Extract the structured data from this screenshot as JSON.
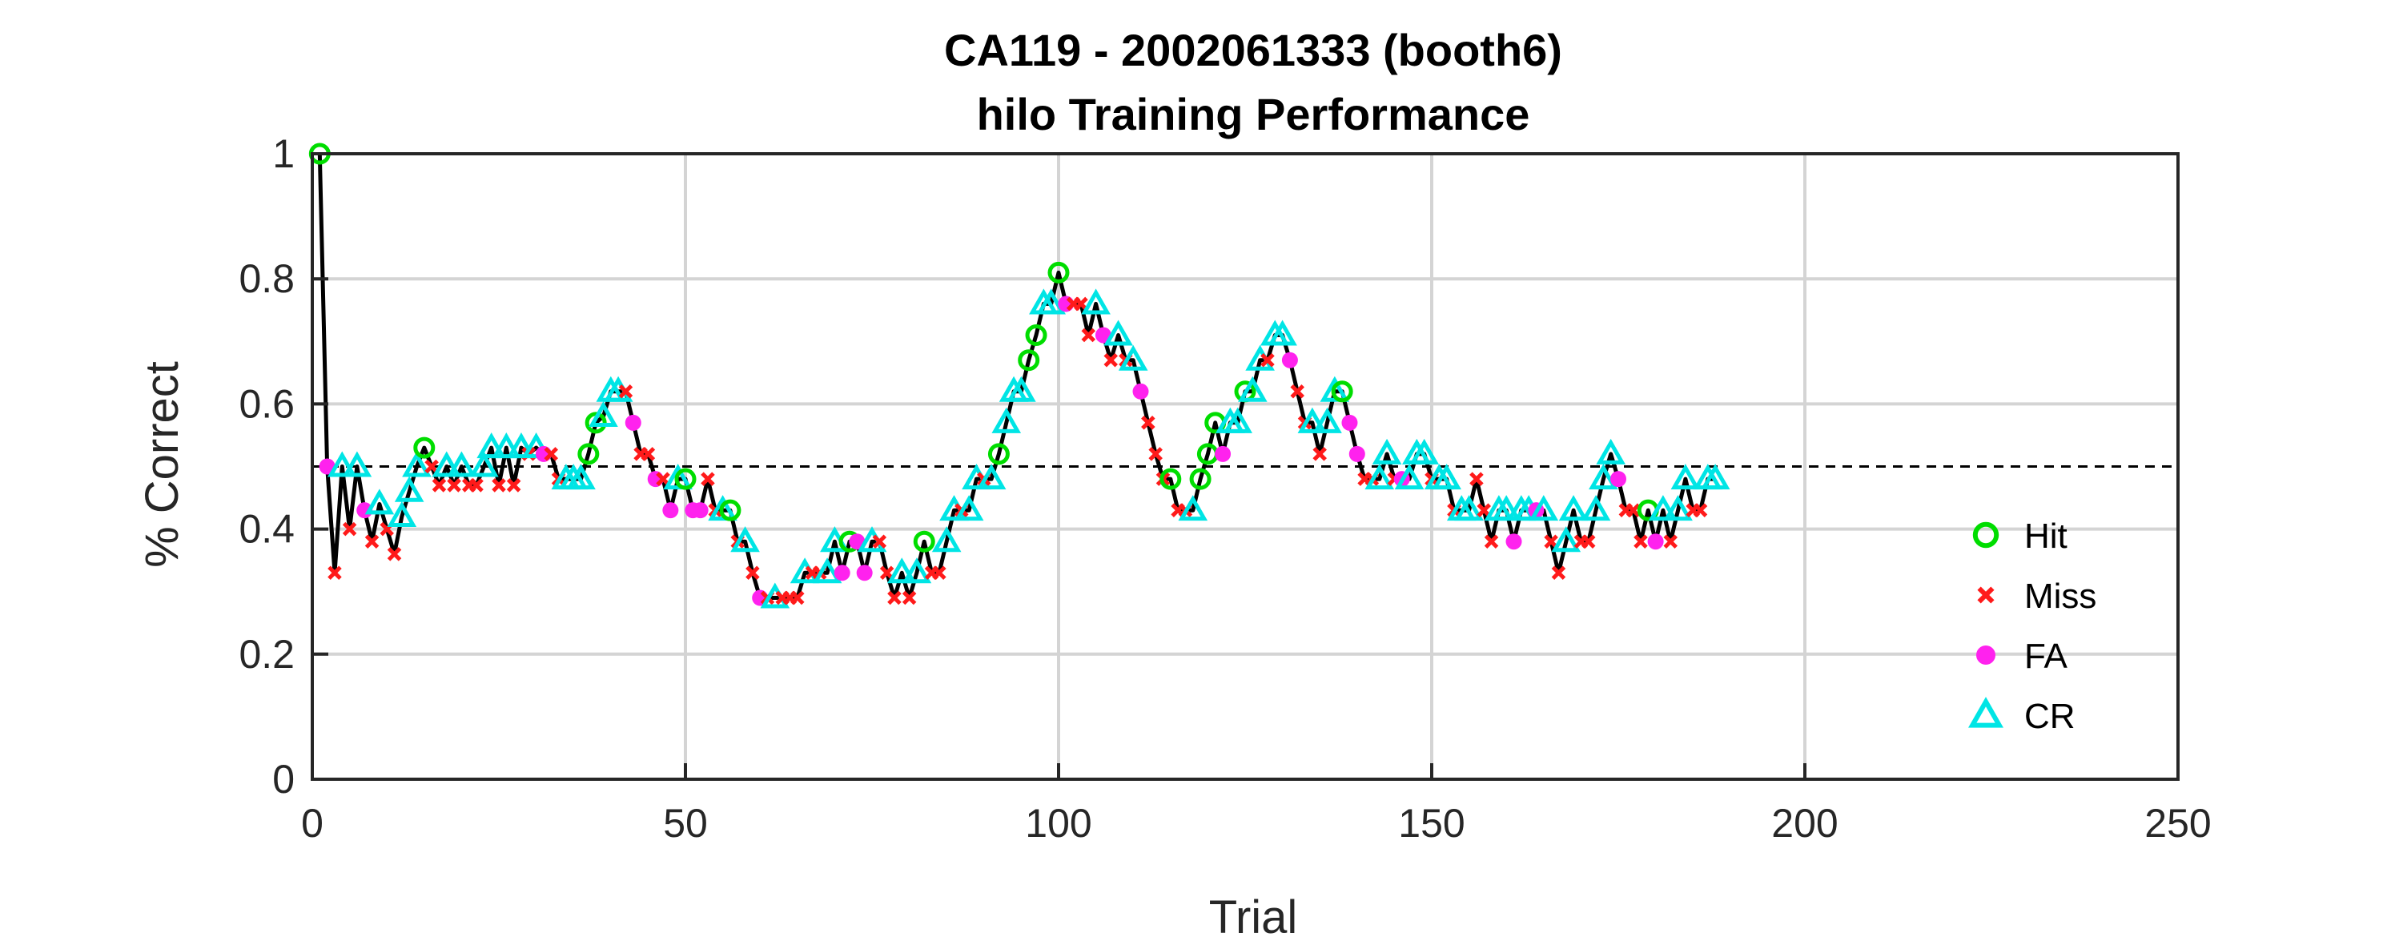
{
  "chart_data": {
    "type": "line",
    "title": "CA119 - 2002061333 (booth6)",
    "subtitle": "hilo Training Performance",
    "xlabel": "Trial",
    "ylabel": "% Correct",
    "xlim": [
      0,
      250
    ],
    "ylim": [
      0,
      1
    ],
    "xticks": [
      "0",
      "50",
      "100",
      "150",
      "200",
      "250"
    ],
    "yticks": [
      "0",
      "0.2",
      "0.4",
      "0.6",
      "0.8",
      "1"
    ],
    "grid": true,
    "chance_line": 0.5,
    "legend_position": "right",
    "legend": [
      {
        "name": "Hit",
        "marker": "circle",
        "color": "#00dd00"
      },
      {
        "name": "Miss",
        "marker": "x",
        "color": "#ff1a1a"
      },
      {
        "name": "FA",
        "marker": "dot",
        "color": "#ff22ee"
      },
      {
        "name": "CR",
        "marker": "triangle",
        "color": "#00e5e5"
      }
    ],
    "outcome_key": {
      "H": "Hit",
      "M": "Miss",
      "F": "FA",
      "C": "CR"
    },
    "trials": [
      {
        "x": 1,
        "y": 1.0,
        "o": "H"
      },
      {
        "x": 2,
        "y": 0.5,
        "o": "F"
      },
      {
        "x": 3,
        "y": 0.33,
        "o": "M"
      },
      {
        "x": 4,
        "y": 0.5,
        "o": "C"
      },
      {
        "x": 5,
        "y": 0.4,
        "o": "M"
      },
      {
        "x": 6,
        "y": 0.5,
        "o": "C"
      },
      {
        "x": 7,
        "y": 0.43,
        "o": "F"
      },
      {
        "x": 8,
        "y": 0.38,
        "o": "M"
      },
      {
        "x": 9,
        "y": 0.44,
        "o": "C"
      },
      {
        "x": 10,
        "y": 0.4,
        "o": "M"
      },
      {
        "x": 11,
        "y": 0.36,
        "o": "M"
      },
      {
        "x": 12,
        "y": 0.42,
        "o": "C"
      },
      {
        "x": 13,
        "y": 0.46,
        "o": "C"
      },
      {
        "x": 14,
        "y": 0.5,
        "o": "C"
      },
      {
        "x": 15,
        "y": 0.53,
        "o": "H"
      },
      {
        "x": 16,
        "y": 0.5,
        "o": "M"
      },
      {
        "x": 17,
        "y": 0.47,
        "o": "M"
      },
      {
        "x": 18,
        "y": 0.5,
        "o": "C"
      },
      {
        "x": 19,
        "y": 0.47,
        "o": "M"
      },
      {
        "x": 20,
        "y": 0.5,
        "o": "C"
      },
      {
        "x": 21,
        "y": 0.47,
        "o": "M"
      },
      {
        "x": 22,
        "y": 0.47,
        "o": "M"
      },
      {
        "x": 23,
        "y": 0.5,
        "o": "C"
      },
      {
        "x": 24,
        "y": 0.53,
        "o": "C"
      },
      {
        "x": 25,
        "y": 0.47,
        "o": "M"
      },
      {
        "x": 26,
        "y": 0.53,
        "o": "C"
      },
      {
        "x": 27,
        "y": 0.47,
        "o": "M"
      },
      {
        "x": 28,
        "y": 0.53,
        "o": "C"
      },
      {
        "x": 29,
        "y": 0.52,
        "o": "M"
      },
      {
        "x": 30,
        "y": 0.53,
        "o": "C"
      },
      {
        "x": 31,
        "y": 0.52,
        "o": "F"
      },
      {
        "x": 32,
        "y": 0.52,
        "o": "M"
      },
      {
        "x": 33,
        "y": 0.48,
        "o": "M"
      },
      {
        "x": 34,
        "y": 0.48,
        "o": "C"
      },
      {
        "x": 35,
        "y": 0.48,
        "o": "C"
      },
      {
        "x": 36,
        "y": 0.48,
        "o": "C"
      },
      {
        "x": 37,
        "y": 0.52,
        "o": "H"
      },
      {
        "x": 38,
        "y": 0.57,
        "o": "H"
      },
      {
        "x": 39,
        "y": 0.58,
        "o": "C"
      },
      {
        "x": 40,
        "y": 0.62,
        "o": "C"
      },
      {
        "x": 41,
        "y": 0.62,
        "o": "C"
      },
      {
        "x": 42,
        "y": 0.62,
        "o": "M"
      },
      {
        "x": 43,
        "y": 0.57,
        "o": "F"
      },
      {
        "x": 44,
        "y": 0.52,
        "o": "M"
      },
      {
        "x": 45,
        "y": 0.52,
        "o": "M"
      },
      {
        "x": 46,
        "y": 0.48,
        "o": "F"
      },
      {
        "x": 47,
        "y": 0.48,
        "o": "M"
      },
      {
        "x": 48,
        "y": 0.43,
        "o": "F"
      },
      {
        "x": 49,
        "y": 0.48,
        "o": "C"
      },
      {
        "x": 50,
        "y": 0.48,
        "o": "H"
      },
      {
        "x": 51,
        "y": 0.43,
        "o": "F"
      },
      {
        "x": 52,
        "y": 0.43,
        "o": "F"
      },
      {
        "x": 53,
        "y": 0.48,
        "o": "M"
      },
      {
        "x": 54,
        "y": 0.43,
        "o": "M"
      },
      {
        "x": 55,
        "y": 0.43,
        "o": "C"
      },
      {
        "x": 56,
        "y": 0.43,
        "o": "H"
      },
      {
        "x": 57,
        "y": 0.38,
        "o": "M"
      },
      {
        "x": 58,
        "y": 0.38,
        "o": "C"
      },
      {
        "x": 59,
        "y": 0.33,
        "o": "M"
      },
      {
        "x": 60,
        "y": 0.29,
        "o": "F"
      },
      {
        "x": 61,
        "y": 0.29,
        "o": "M"
      },
      {
        "x": 62,
        "y": 0.29,
        "o": "C"
      },
      {
        "x": 63,
        "y": 0.29,
        "o": "M"
      },
      {
        "x": 64,
        "y": 0.29,
        "o": "M"
      },
      {
        "x": 65,
        "y": 0.29,
        "o": "M"
      },
      {
        "x": 66,
        "y": 0.33,
        "o": "C"
      },
      {
        "x": 67,
        "y": 0.33,
        "o": "M"
      },
      {
        "x": 68,
        "y": 0.33,
        "o": "M"
      },
      {
        "x": 69,
        "y": 0.33,
        "o": "C"
      },
      {
        "x": 70,
        "y": 0.38,
        "o": "C"
      },
      {
        "x": 71,
        "y": 0.33,
        "o": "F"
      },
      {
        "x": 72,
        "y": 0.38,
        "o": "H"
      },
      {
        "x": 73,
        "y": 0.38,
        "o": "F"
      },
      {
        "x": 74,
        "y": 0.33,
        "o": "F"
      },
      {
        "x": 75,
        "y": 0.38,
        "o": "C"
      },
      {
        "x": 76,
        "y": 0.38,
        "o": "M"
      },
      {
        "x": 77,
        "y": 0.33,
        "o": "M"
      },
      {
        "x": 78,
        "y": 0.29,
        "o": "M"
      },
      {
        "x": 79,
        "y": 0.33,
        "o": "C"
      },
      {
        "x": 80,
        "y": 0.29,
        "o": "M"
      },
      {
        "x": 81,
        "y": 0.33,
        "o": "C"
      },
      {
        "x": 82,
        "y": 0.38,
        "o": "H"
      },
      {
        "x": 83,
        "y": 0.33,
        "o": "M"
      },
      {
        "x": 84,
        "y": 0.33,
        "o": "M"
      },
      {
        "x": 85,
        "y": 0.38,
        "o": "C"
      },
      {
        "x": 86,
        "y": 0.43,
        "o": "C"
      },
      {
        "x": 87,
        "y": 0.43,
        "o": "M"
      },
      {
        "x": 88,
        "y": 0.43,
        "o": "C"
      },
      {
        "x": 89,
        "y": 0.48,
        "o": "C"
      },
      {
        "x": 90,
        "y": 0.48,
        "o": "M"
      },
      {
        "x": 91,
        "y": 0.48,
        "o": "C"
      },
      {
        "x": 92,
        "y": 0.52,
        "o": "H"
      },
      {
        "x": 93,
        "y": 0.57,
        "o": "C"
      },
      {
        "x": 94,
        "y": 0.62,
        "o": "C"
      },
      {
        "x": 95,
        "y": 0.62,
        "o": "C"
      },
      {
        "x": 96,
        "y": 0.67,
        "o": "H"
      },
      {
        "x": 97,
        "y": 0.71,
        "o": "H"
      },
      {
        "x": 98,
        "y": 0.76,
        "o": "C"
      },
      {
        "x": 99,
        "y": 0.76,
        "o": "C"
      },
      {
        "x": 100,
        "y": 0.81,
        "o": "H"
      },
      {
        "x": 101,
        "y": 0.76,
        "o": "F"
      },
      {
        "x": 102,
        "y": 0.76,
        "o": "M"
      },
      {
        "x": 103,
        "y": 0.76,
        "o": "M"
      },
      {
        "x": 104,
        "y": 0.71,
        "o": "M"
      },
      {
        "x": 105,
        "y": 0.76,
        "o": "C"
      },
      {
        "x": 106,
        "y": 0.71,
        "o": "F"
      },
      {
        "x": 107,
        "y": 0.67,
        "o": "M"
      },
      {
        "x": 108,
        "y": 0.71,
        "o": "C"
      },
      {
        "x": 109,
        "y": 0.67,
        "o": "M"
      },
      {
        "x": 110,
        "y": 0.67,
        "o": "C"
      },
      {
        "x": 111,
        "y": 0.62,
        "o": "F"
      },
      {
        "x": 112,
        "y": 0.57,
        "o": "M"
      },
      {
        "x": 113,
        "y": 0.52,
        "o": "M"
      },
      {
        "x": 114,
        "y": 0.48,
        "o": "M"
      },
      {
        "x": 115,
        "y": 0.48,
        "o": "H"
      },
      {
        "x": 116,
        "y": 0.43,
        "o": "M"
      },
      {
        "x": 117,
        "y": 0.43,
        "o": "M"
      },
      {
        "x": 118,
        "y": 0.43,
        "o": "C"
      },
      {
        "x": 119,
        "y": 0.48,
        "o": "H"
      },
      {
        "x": 120,
        "y": 0.52,
        "o": "H"
      },
      {
        "x": 121,
        "y": 0.57,
        "o": "H"
      },
      {
        "x": 122,
        "y": 0.52,
        "o": "F"
      },
      {
        "x": 123,
        "y": 0.57,
        "o": "C"
      },
      {
        "x": 124,
        "y": 0.57,
        "o": "C"
      },
      {
        "x": 125,
        "y": 0.62,
        "o": "H"
      },
      {
        "x": 126,
        "y": 0.62,
        "o": "C"
      },
      {
        "x": 127,
        "y": 0.67,
        "o": "C"
      },
      {
        "x": 128,
        "y": 0.67,
        "o": "M"
      },
      {
        "x": 129,
        "y": 0.71,
        "o": "C"
      },
      {
        "x": 130,
        "y": 0.71,
        "o": "C"
      },
      {
        "x": 131,
        "y": 0.67,
        "o": "F"
      },
      {
        "x": 132,
        "y": 0.62,
        "o": "M"
      },
      {
        "x": 133,
        "y": 0.57,
        "o": "M"
      },
      {
        "x": 134,
        "y": 0.57,
        "o": "C"
      },
      {
        "x": 135,
        "y": 0.52,
        "o": "M"
      },
      {
        "x": 136,
        "y": 0.57,
        "o": "C"
      },
      {
        "x": 137,
        "y": 0.62,
        "o": "C"
      },
      {
        "x": 138,
        "y": 0.62,
        "o": "H"
      },
      {
        "x": 139,
        "y": 0.57,
        "o": "F"
      },
      {
        "x": 140,
        "y": 0.52,
        "o": "F"
      },
      {
        "x": 141,
        "y": 0.48,
        "o": "M"
      },
      {
        "x": 142,
        "y": 0.48,
        "o": "M"
      },
      {
        "x": 143,
        "y": 0.48,
        "o": "C"
      },
      {
        "x": 144,
        "y": 0.52,
        "o": "C"
      },
      {
        "x": 145,
        "y": 0.48,
        "o": "M"
      },
      {
        "x": 146,
        "y": 0.48,
        "o": "F"
      },
      {
        "x": 147,
        "y": 0.48,
        "o": "C"
      },
      {
        "x": 148,
        "y": 0.52,
        "o": "C"
      },
      {
        "x": 149,
        "y": 0.52,
        "o": "C"
      },
      {
        "x": 150,
        "y": 0.48,
        "o": "M"
      },
      {
        "x": 151,
        "y": 0.48,
        "o": "C"
      },
      {
        "x": 152,
        "y": 0.48,
        "o": "C"
      },
      {
        "x": 153,
        "y": 0.43,
        "o": "M"
      },
      {
        "x": 154,
        "y": 0.43,
        "o": "C"
      },
      {
        "x": 155,
        "y": 0.43,
        "o": "C"
      },
      {
        "x": 156,
        "y": 0.48,
        "o": "M"
      },
      {
        "x": 157,
        "y": 0.43,
        "o": "M"
      },
      {
        "x": 158,
        "y": 0.38,
        "o": "M"
      },
      {
        "x": 159,
        "y": 0.43,
        "o": "C"
      },
      {
        "x": 160,
        "y": 0.43,
        "o": "C"
      },
      {
        "x": 161,
        "y": 0.38,
        "o": "F"
      },
      {
        "x": 162,
        "y": 0.43,
        "o": "C"
      },
      {
        "x": 163,
        "y": 0.43,
        "o": "C"
      },
      {
        "x": 164,
        "y": 0.43,
        "o": "F"
      },
      {
        "x": 165,
        "y": 0.43,
        "o": "C"
      },
      {
        "x": 166,
        "y": 0.38,
        "o": "M"
      },
      {
        "x": 167,
        "y": 0.33,
        "o": "M"
      },
      {
        "x": 168,
        "y": 0.38,
        "o": "C"
      },
      {
        "x": 169,
        "y": 0.43,
        "o": "C"
      },
      {
        "x": 170,
        "y": 0.38,
        "o": "M"
      },
      {
        "x": 171,
        "y": 0.38,
        "o": "M"
      },
      {
        "x": 172,
        "y": 0.43,
        "o": "C"
      },
      {
        "x": 173,
        "y": 0.48,
        "o": "C"
      },
      {
        "x": 174,
        "y": 0.52,
        "o": "C"
      },
      {
        "x": 175,
        "y": 0.48,
        "o": "F"
      },
      {
        "x": 176,
        "y": 0.43,
        "o": "M"
      },
      {
        "x": 177,
        "y": 0.43,
        "o": "M"
      },
      {
        "x": 178,
        "y": 0.38,
        "o": "M"
      },
      {
        "x": 179,
        "y": 0.43,
        "o": "H"
      },
      {
        "x": 180,
        "y": 0.38,
        "o": "F"
      },
      {
        "x": 181,
        "y": 0.43,
        "o": "C"
      },
      {
        "x": 182,
        "y": 0.38,
        "o": "M"
      },
      {
        "x": 183,
        "y": 0.43,
        "o": "C"
      },
      {
        "x": 184,
        "y": 0.48,
        "o": "C"
      },
      {
        "x": 185,
        "y": 0.43,
        "o": "M"
      },
      {
        "x": 186,
        "y": 0.43,
        "o": "M"
      },
      {
        "x": 187,
        "y": 0.48,
        "o": "C"
      },
      {
        "x": 188,
        "y": 0.48,
        "o": "C"
      }
    ]
  }
}
